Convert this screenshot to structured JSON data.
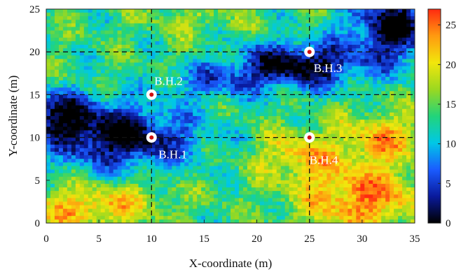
{
  "chart_data": {
    "type": "heatmap",
    "xlabel": "X-coordinate (m)",
    "ylabel": "Y-coordinate (m)",
    "xlim": [
      0,
      35
    ],
    "ylim": [
      0,
      25
    ],
    "x_ticks": [
      "0",
      "5",
      "10",
      "15",
      "20",
      "25",
      "30",
      "35"
    ],
    "y_ticks": [
      "0",
      "5",
      "10",
      "15",
      "20",
      "25"
    ],
    "colorbar": {
      "range": [
        0,
        27
      ],
      "ticks": [
        "0",
        "5",
        "10",
        "15",
        "20",
        "25"
      ],
      "colormap": "jet-with-black-low",
      "stops": [
        "#000000",
        "#0a1a9c",
        "#1a5cff",
        "#00c8e6",
        "#22d47a",
        "#9bd820",
        "#f2e60c",
        "#ff9a10",
        "#ff2a10"
      ]
    },
    "guide_lines": {
      "x": [
        10,
        25
      ],
      "y": [
        10,
        15,
        20
      ],
      "style": "dashed"
    },
    "boreholes": [
      {
        "label": "B.H.1",
        "x": 10,
        "y": 10
      },
      {
        "label": "B.H.2",
        "x": 10,
        "y": 15
      },
      {
        "label": "B.H.3",
        "x": 25,
        "y": 20
      },
      {
        "label": "B.H.4",
        "x": 25,
        "y": 10
      }
    ]
  }
}
